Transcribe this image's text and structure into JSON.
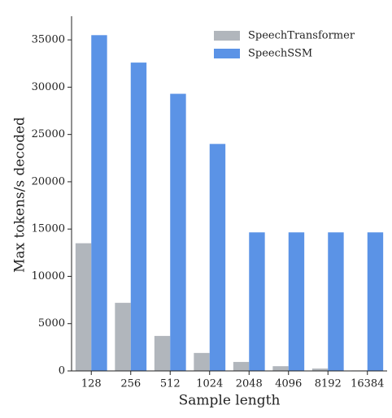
{
  "chart_data": {
    "type": "bar",
    "x_label": "Sample length",
    "y_label": "Max tokens/s decoded",
    "categories": [
      "128",
      "256",
      "512",
      "1024",
      "2048",
      "4096",
      "8192",
      "16384"
    ],
    "series": [
      {
        "name": "SpeechTransformer",
        "color": "#b1b6bc",
        "values": [
          13500,
          7200,
          3700,
          1900,
          950,
          500,
          250,
          50
        ]
      },
      {
        "name": "SpeechSSM",
        "color": "#5b93e6",
        "values": [
          35500,
          32600,
          29300,
          24000,
          14650,
          14650,
          14650,
          14650
        ]
      }
    ],
    "ylim": [
      0,
      37500
    ],
    "yticks": [
      0,
      5000,
      10000,
      15000,
      20000,
      25000,
      30000,
      35000
    ],
    "legend": "upper right"
  }
}
